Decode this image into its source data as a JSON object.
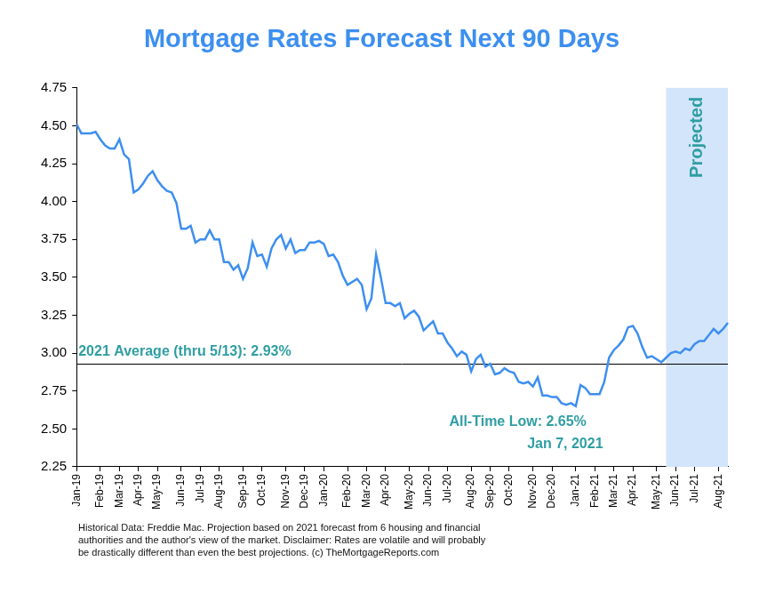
{
  "chart_data": {
    "type": "line",
    "title": "Mortgage Rates Forecast Next 90 Days",
    "color": "#3d8ff0",
    "grid": false,
    "ylim": [
      2.25,
      4.75
    ],
    "yticks": [
      2.25,
      {
        "value": 2.5,
        "label": "2.50"
      },
      2.75,
      {
        "value": 3,
        "label": "3.00"
      },
      3.25,
      {
        "value": 3.5,
        "label": "3.50"
      },
      3.75,
      {
        "value": 4,
        "label": "4.00"
      },
      4.25,
      {
        "value": 4.5,
        "label": "4.50"
      },
      4.75
    ],
    "categories": [
      "Jan-19",
      null,
      null,
      null,
      null,
      "Feb-19",
      null,
      null,
      null,
      "Mar-19",
      null,
      null,
      null,
      "Apr-19",
      null,
      null,
      null,
      "May-19",
      null,
      null,
      null,
      null,
      "Jun-19",
      null,
      null,
      null,
      "Jul-19",
      null,
      null,
      null,
      "Aug-19",
      null,
      null,
      null,
      null,
      "Sep-19",
      null,
      null,
      null,
      "Oct-19",
      null,
      null,
      null,
      null,
      "Nov-19",
      null,
      null,
      null,
      "Dec-19",
      null,
      null,
      null,
      "Jan-20",
      null,
      null,
      null,
      null,
      "Feb-20",
      null,
      null,
      null,
      "Mar-20",
      null,
      null,
      null,
      "Apr-20",
      null,
      null,
      null,
      null,
      "May-20",
      null,
      null,
      null,
      "Jun-20",
      null,
      null,
      null,
      "Jul-20",
      null,
      null,
      null,
      null,
      "Aug-20",
      null,
      null,
      null,
      "Sep-20",
      null,
      null,
      null,
      "Oct-20",
      null,
      null,
      null,
      null,
      "Nov-20",
      null,
      null,
      null,
      "Dec-20",
      null,
      null,
      null,
      null,
      "Jan-21",
      null,
      null,
      null,
      "Feb-21",
      null,
      null,
      null,
      "Mar-21",
      null,
      null,
      null,
      "Apr-21",
      null,
      null,
      null,
      null,
      "May-21",
      null,
      null,
      null,
      "Jun-21",
      null,
      null,
      null,
      "Jul-21",
      null,
      null,
      null,
      null,
      "Aug-21",
      null,
      null
    ],
    "values": [
      4.51,
      4.45,
      4.45,
      4.45,
      4.46,
      4.41,
      4.37,
      4.35,
      4.35,
      4.41,
      4.31,
      4.28,
      4.06,
      4.08,
      4.12,
      4.17,
      4.2,
      4.14,
      4.1,
      4.07,
      4.06,
      3.99,
      3.82,
      3.82,
      3.84,
      3.73,
      3.75,
      3.75,
      3.81,
      3.75,
      3.75,
      3.6,
      3.6,
      3.55,
      3.58,
      3.49,
      3.56,
      3.73,
      3.64,
      3.65,
      3.57,
      3.69,
      3.75,
      3.78,
      3.69,
      3.75,
      3.66,
      3.68,
      3.68,
      3.73,
      3.73,
      3.74,
      3.72,
      3.64,
      3.65,
      3.6,
      3.51,
      3.45,
      3.47,
      3.49,
      3.45,
      3.29,
      3.36,
      3.65,
      3.5,
      3.33,
      3.33,
      3.31,
      3.33,
      3.23,
      3.26,
      3.28,
      3.24,
      3.15,
      3.18,
      3.21,
      3.13,
      3.13,
      3.07,
      3.03,
      2.98,
      3.01,
      2.99,
      2.88,
      2.96,
      2.99,
      2.91,
      2.93,
      2.86,
      2.87,
      2.9,
      2.88,
      2.87,
      2.81,
      2.8,
      2.81,
      2.78,
      2.84,
      2.72,
      2.72,
      2.71,
      2.71,
      2.67,
      2.66,
      2.67,
      2.65,
      2.79,
      2.77,
      2.73,
      2.73,
      2.73,
      2.81,
      2.97,
      3.02,
      3.05,
      3.09,
      3.17,
      3.18,
      3.13,
      3.04,
      2.97,
      2.98,
      2.96,
      2.94,
      null,
      null,
      null,
      null,
      null,
      null,
      null,
      null,
      null,
      null,
      null,
      null,
      null,
      null
    ],
    "projected_values": [
      null,
      null,
      null,
      null,
      null,
      null,
      null,
      null,
      null,
      null,
      null,
      null,
      null,
      null,
      null,
      null,
      null,
      null,
      null,
      null,
      null,
      null,
      null,
      null,
      null,
      null,
      null,
      null,
      null,
      null,
      null,
      null,
      null,
      null,
      null,
      null,
      null,
      null,
      null,
      null,
      null,
      null,
      null,
      null,
      null,
      null,
      null,
      null,
      null,
      null,
      null,
      null,
      null,
      null,
      null,
      null,
      null,
      null,
      null,
      null,
      null,
      null,
      null,
      null,
      null,
      null,
      null,
      null,
      null,
      null,
      null,
      null,
      null,
      null,
      null,
      null,
      null,
      null,
      null,
      null,
      null,
      null,
      null,
      null,
      null,
      null,
      null,
      null,
      null,
      null,
      null,
      null,
      null,
      null,
      null,
      null,
      null,
      null,
      null,
      null,
      null,
      null,
      null,
      null,
      null,
      null,
      null,
      null,
      null,
      null,
      null,
      null,
      null,
      null,
      null,
      null,
      null,
      null,
      null,
      null,
      null,
      null,
      null,
      null,
      2.97,
      3.0,
      3.01,
      3.0,
      3.03,
      3.02,
      3.06,
      3.08,
      3.08,
      3.12,
      3.16,
      3.13,
      3.16,
      3.2
    ],
    "projected_label": "Projected",
    "reference_line": {
      "value": 2.93,
      "label": "2021 Average (thru 5/13): 2.93%"
    },
    "annotations": [
      {
        "value": 2.65,
        "text": [
          "All-Time Low: 2.65%",
          "Jan 7, 2021"
        ]
      }
    ],
    "footnote": [
      "Historical Data: Freddie Mac. Projection based on 2021 forecast from 6 housing and financial",
      "authorities and the author's view of the market. Disclaimer: Rates are volatile and will probably",
      "be drastically different than even the best projections. (c) TheMortgageReports.com"
    ]
  }
}
